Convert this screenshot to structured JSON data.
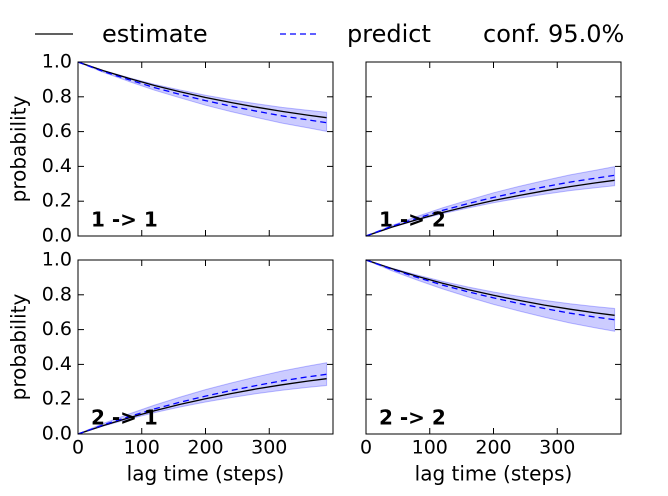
{
  "chart_data": [
    {
      "type": "line",
      "title": "1 -> 1",
      "ylabel": "probability",
      "x": [
        0,
        40,
        80,
        120,
        160,
        200,
        240,
        280,
        320,
        360,
        390
      ],
      "xlim": [
        0,
        400
      ],
      "xticks": [
        0,
        100,
        200,
        300
      ],
      "xtick_labels": false,
      "ylim": [
        0,
        1
      ],
      "yticks": [
        {
          "value": 0,
          "label": "0.0"
        },
        0.2,
        0.4,
        0.6,
        0.8,
        {
          "value": 1,
          "label": "1.0"
        }
      ],
      "ytick_labels": true,
      "series": [
        {
          "name": "estimate",
          "color": "#000000",
          "values": [
            1,
            0.95,
            0.906,
            0.865,
            0.829,
            0.796,
            0.767,
            0.74,
            0.716,
            0.695,
            0.68
          ]
        },
        {
          "name": "predict",
          "color": "#0000ff",
          "values": [
            1,
            0.945,
            0.898,
            0.853,
            0.814,
            0.778,
            0.746,
            0.717,
            0.69,
            0.668,
            0.651
          ]
        },
        {
          "name": "conf. 95.0%",
          "color": "#0000ff",
          "upper": [
            1,
            0.951,
            0.91,
            0.871,
            0.839,
            0.809,
            0.783,
            0.76,
            0.739,
            0.723,
            0.711
          ],
          "lower": [
            1,
            0.94,
            0.888,
            0.838,
            0.794,
            0.752,
            0.715,
            0.681,
            0.649,
            0.622,
            0.601
          ]
        }
      ]
    },
    {
      "type": "line",
      "title": "1 -> 2",
      "x": [
        0,
        40,
        80,
        120,
        160,
        200,
        240,
        280,
        320,
        360,
        390
      ],
      "xlim": [
        0,
        400
      ],
      "xticks": [
        0,
        100,
        200,
        300
      ],
      "xtick_labels": false,
      "ylim": [
        0,
        1
      ],
      "yticks": [
        0,
        0.2,
        0.4,
        0.6,
        0.8,
        1
      ],
      "ytick_labels": false,
      "series": [
        {
          "name": "estimate",
          "color": "#000000",
          "values": [
            0,
            0.05,
            0.094,
            0.135,
            0.171,
            0.204,
            0.233,
            0.26,
            0.284,
            0.305,
            0.32
          ]
        },
        {
          "name": "predict",
          "color": "#0000ff",
          "values": [
            0,
            0.055,
            0.102,
            0.147,
            0.186,
            0.222,
            0.254,
            0.283,
            0.31,
            0.332,
            0.349
          ]
        },
        {
          "name": "conf. 95.0%",
          "color": "#0000ff",
          "upper": [
            0,
            0.06,
            0.112,
            0.162,
            0.206,
            0.248,
            0.285,
            0.319,
            0.351,
            0.378,
            0.399
          ],
          "lower": [
            0,
            0.049,
            0.09,
            0.129,
            0.161,
            0.191,
            0.217,
            0.24,
            0.261,
            0.277,
            0.289
          ]
        }
      ]
    },
    {
      "type": "line",
      "title": "2 -> 1",
      "ylabel": "probability",
      "xlabel": "lag time (steps)",
      "x": [
        0,
        40,
        80,
        120,
        160,
        200,
        240,
        280,
        320,
        360,
        390
      ],
      "xlim": [
        0,
        400
      ],
      "xticks": [
        0,
        100,
        200,
        300
      ],
      "xtick_labels": true,
      "ylim": [
        0,
        1
      ],
      "yticks": [
        {
          "value": 0,
          "label": "0.0"
        },
        0.2,
        0.4,
        0.6,
        0.8,
        {
          "value": 1,
          "label": "1.0"
        }
      ],
      "ytick_labels": true,
      "series": [
        {
          "name": "estimate",
          "color": "#000000",
          "values": [
            0,
            0.049,
            0.093,
            0.134,
            0.17,
            0.203,
            0.232,
            0.259,
            0.283,
            0.304,
            0.318
          ]
        },
        {
          "name": "predict",
          "color": "#0000ff",
          "values": [
            0,
            0.053,
            0.1,
            0.144,
            0.183,
            0.218,
            0.25,
            0.279,
            0.306,
            0.328,
            0.343
          ]
        },
        {
          "name": "conf. 95.0%",
          "color": "#0000ff",
          "upper": [
            0,
            0.061,
            0.115,
            0.166,
            0.212,
            0.255,
            0.293,
            0.329,
            0.362,
            0.39,
            0.41
          ],
          "lower": [
            0,
            0.046,
            0.086,
            0.123,
            0.155,
            0.184,
            0.209,
            0.232,
            0.252,
            0.268,
            0.279
          ]
        }
      ]
    },
    {
      "type": "line",
      "title": "2 -> 2",
      "xlabel": "lag time (steps)",
      "x": [
        0,
        40,
        80,
        120,
        160,
        200,
        240,
        280,
        320,
        360,
        390
      ],
      "xlim": [
        0,
        400
      ],
      "xticks": [
        0,
        100,
        200,
        300
      ],
      "xtick_labels": true,
      "ylim": [
        0,
        1
      ],
      "yticks": [
        0,
        0.2,
        0.4,
        0.6,
        0.8,
        1
      ],
      "ytick_labels": false,
      "series": [
        {
          "name": "estimate",
          "color": "#000000",
          "values": [
            1,
            0.951,
            0.907,
            0.866,
            0.83,
            0.797,
            0.768,
            0.741,
            0.717,
            0.696,
            0.682
          ]
        },
        {
          "name": "predict",
          "color": "#0000ff",
          "values": [
            1,
            0.947,
            0.9,
            0.856,
            0.817,
            0.782,
            0.75,
            0.721,
            0.694,
            0.672,
            0.657
          ]
        },
        {
          "name": "conf. 95.0%",
          "color": "#0000ff",
          "upper": [
            1,
            0.954,
            0.914,
            0.877,
            0.845,
            0.816,
            0.791,
            0.768,
            0.748,
            0.732,
            0.721
          ],
          "lower": [
            1,
            0.939,
            0.885,
            0.834,
            0.788,
            0.745,
            0.707,
            0.671,
            0.638,
            0.61,
            0.59
          ]
        }
      ]
    }
  ]
}
